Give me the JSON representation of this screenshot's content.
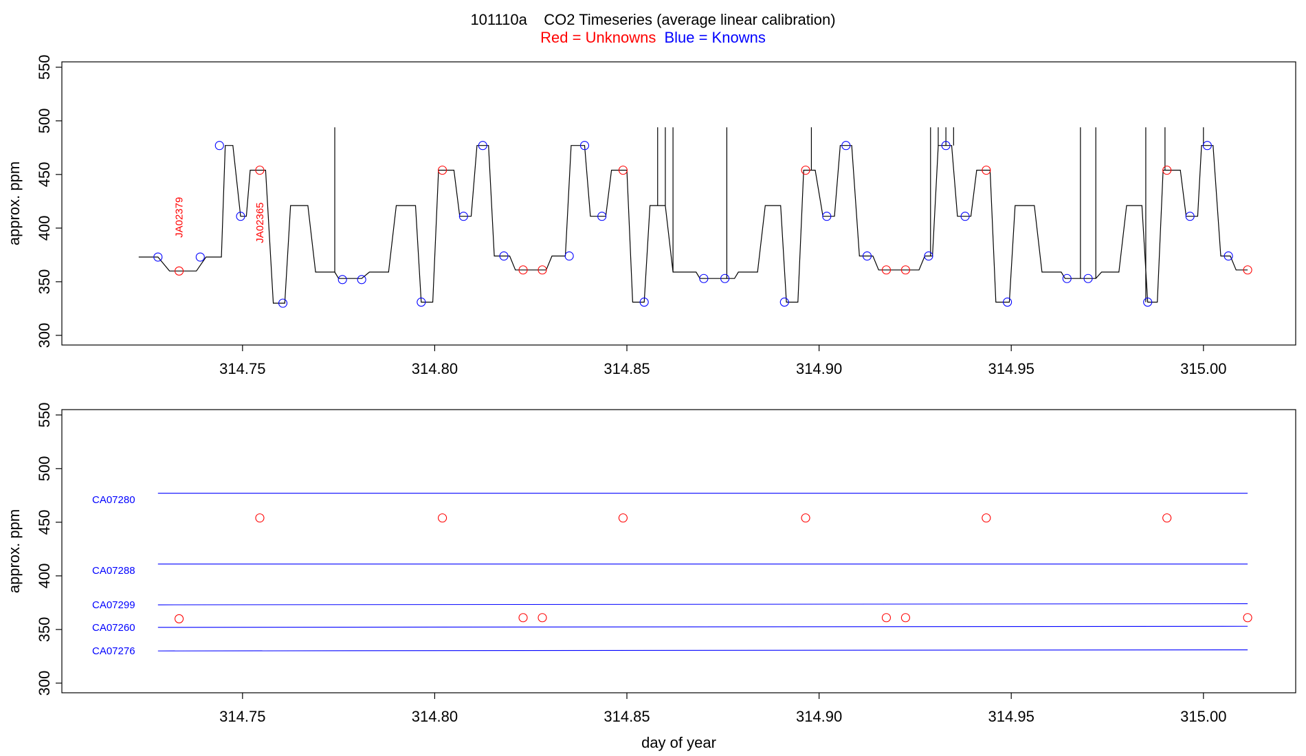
{
  "title": {
    "main": "101110a    CO2 Timeseries (average linear calibration)",
    "legend_red": "Red = Unknowns",
    "legend_blue": "Blue = Knowns"
  },
  "colors": {
    "unknowns": "#ff0000",
    "knowns": "#0000ff",
    "trace": "#000000"
  },
  "chart_data": [
    {
      "type": "line",
      "panel": "top",
      "xlabel": "",
      "ylabel": "approx. ppm",
      "xlim": [
        314.703,
        315.024
      ],
      "ylim": [
        291,
        555
      ],
      "xticks": [
        314.75,
        314.8,
        314.85,
        314.9,
        314.95,
        315.0
      ],
      "xtick_labels": [
        "314.75",
        "314.80",
        "314.85",
        "314.90",
        "314.95",
        "315.00"
      ],
      "yticks": [
        300,
        350,
        400,
        450,
        500,
        550
      ],
      "ytick_labels": [
        "300",
        "350",
        "400",
        "450",
        "500",
        "550"
      ],
      "trace": {
        "name": "",
        "segments": [
          [
            314.723,
            314.728,
            373
          ],
          [
            314.731,
            314.738,
            360
          ],
          [
            314.7405,
            314.7445,
            373
          ],
          [
            314.7455,
            314.7475,
            477
          ],
          [
            314.7495,
            314.751,
            411
          ],
          [
            314.752,
            314.756,
            454
          ],
          [
            314.758,
            314.761,
            330
          ],
          [
            314.7625,
            314.767,
            421
          ],
          [
            314.769,
            314.774,
            359
          ],
          [
            314.775,
            314.781,
            353
          ],
          [
            314.783,
            314.788,
            359
          ],
          [
            314.79,
            314.795,
            421
          ],
          [
            314.7965,
            314.7995,
            331
          ],
          [
            314.801,
            314.805,
            454
          ],
          [
            314.8065,
            314.8095,
            411
          ],
          [
            314.811,
            314.814,
            477
          ],
          [
            314.8155,
            314.8195,
            374
          ],
          [
            314.821,
            314.829,
            361
          ],
          [
            314.8305,
            314.834,
            374
          ],
          [
            314.8355,
            314.839,
            477
          ],
          [
            314.8405,
            314.8445,
            411
          ],
          [
            314.846,
            314.85,
            454
          ],
          [
            314.8515,
            314.8545,
            331
          ],
          [
            314.856,
            314.86,
            421
          ],
          [
            314.862,
            314.868,
            359
          ],
          [
            314.869,
            314.878,
            353
          ],
          [
            314.879,
            314.884,
            359
          ],
          [
            314.886,
            314.89,
            421
          ],
          [
            314.8915,
            314.8945,
            331
          ],
          [
            314.896,
            314.899,
            454
          ],
          [
            314.901,
            314.904,
            411
          ],
          [
            314.9055,
            314.9085,
            477
          ],
          [
            314.9105,
            314.914,
            374
          ],
          [
            314.9155,
            314.926,
            361
          ],
          [
            314.9275,
            314.9295,
            374
          ],
          [
            314.931,
            314.9345,
            477
          ],
          [
            314.936,
            314.9395,
            411
          ],
          [
            314.941,
            314.9445,
            454
          ],
          [
            314.946,
            314.9495,
            331
          ],
          [
            314.951,
            314.956,
            421
          ],
          [
            314.958,
            314.963,
            359
          ],
          [
            314.964,
            314.972,
            353
          ],
          [
            314.9735,
            314.978,
            359
          ],
          [
            314.98,
            314.984,
            421
          ],
          [
            314.9855,
            314.988,
            331
          ],
          [
            314.9895,
            314.994,
            454
          ],
          [
            314.9955,
            314.9985,
            411
          ],
          [
            314.9995,
            315.0025,
            477
          ],
          [
            315.0045,
            315.007,
            374
          ],
          [
            315.0085,
            315.0115,
            361
          ]
        ],
        "spikes": [
          314.774,
          314.858,
          314.86,
          314.862,
          314.876,
          314.898,
          314.929,
          314.931,
          314.933,
          314.935,
          314.968,
          314.972,
          314.985,
          314.99,
          315.0
        ],
        "spike_top": 494
      },
      "knowns": {
        "name": "Blue = Knowns",
        "x": [
          314.728,
          314.739,
          314.744,
          314.7495,
          314.7605,
          314.776,
          314.781,
          314.7965,
          314.8075,
          314.8125,
          314.818,
          314.835,
          314.839,
          314.8435,
          314.8545,
          314.87,
          314.8755,
          314.891,
          314.902,
          314.907,
          314.9125,
          314.9285,
          314.933,
          314.938,
          314.949,
          314.9645,
          314.97,
          314.9855,
          314.9965,
          315.001,
          315.0065
        ],
        "y": [
          373,
          373,
          477,
          411,
          330,
          352,
          352,
          331,
          411,
          477,
          374,
          374,
          477,
          411,
          331,
          353,
          353,
          331,
          411,
          477,
          374,
          374,
          477,
          411,
          331,
          353,
          353,
          331,
          411,
          477,
          374
        ]
      },
      "unknowns": {
        "name": "Red = Unknowns",
        "x": [
          314.7335,
          314.7545,
          314.802,
          314.823,
          314.828,
          314.849,
          314.8965,
          314.9175,
          314.9225,
          314.9435,
          314.9905,
          315.0115
        ],
        "y": [
          360,
          454,
          454,
          361,
          361,
          454,
          454,
          361,
          361,
          454,
          454,
          361
        ]
      },
      "annotations": [
        {
          "text": "JA02379",
          "x": 314.7335,
          "y": 410,
          "rotation": -90,
          "color": "red"
        },
        {
          "text": "JA02365",
          "x": 314.7545,
          "y": 405,
          "rotation": -90,
          "color": "red"
        }
      ]
    },
    {
      "type": "scatter",
      "panel": "bottom",
      "xlabel": "day of year",
      "ylabel": "approx. ppm",
      "xlim": [
        314.703,
        315.024
      ],
      "ylim": [
        291,
        555
      ],
      "xticks": [
        314.75,
        314.8,
        314.85,
        314.9,
        314.95,
        315.0
      ],
      "xtick_labels": [
        "314.75",
        "314.80",
        "314.85",
        "314.90",
        "314.95",
        "315.00"
      ],
      "yticks": [
        300,
        350,
        400,
        450,
        500,
        550
      ],
      "ytick_labels": [
        "300",
        "350",
        "400",
        "450",
        "500",
        "550"
      ],
      "reference_lines": [
        {
          "name": "CA07280",
          "x": [
            314.728,
            315.0115
          ],
          "y": [
            477,
            477
          ],
          "label_y": 471
        },
        {
          "name": "CA07288",
          "x": [
            314.728,
            315.0115
          ],
          "y": [
            411,
            411
          ],
          "label_y": 405
        },
        {
          "name": "CA07299",
          "x": [
            314.728,
            315.0115
          ],
          "y": [
            373,
            374
          ],
          "label_y": 373
        },
        {
          "name": "CA07260",
          "x": [
            314.728,
            315.0115
          ],
          "y": [
            352,
            353
          ],
          "label_y": 352
        },
        {
          "name": "CA07276",
          "x": [
            314.728,
            315.0115
          ],
          "y": [
            330,
            331
          ],
          "label_y": 330
        }
      ],
      "unknowns": {
        "name": "Red = Unknowns",
        "x": [
          314.7335,
          314.7545,
          314.802,
          314.823,
          314.828,
          314.849,
          314.8965,
          314.9175,
          314.9225,
          314.9435,
          314.9905,
          315.0115
        ],
        "y": [
          360,
          454,
          454,
          361,
          361,
          454,
          454,
          361,
          361,
          454,
          454,
          361
        ]
      }
    }
  ]
}
